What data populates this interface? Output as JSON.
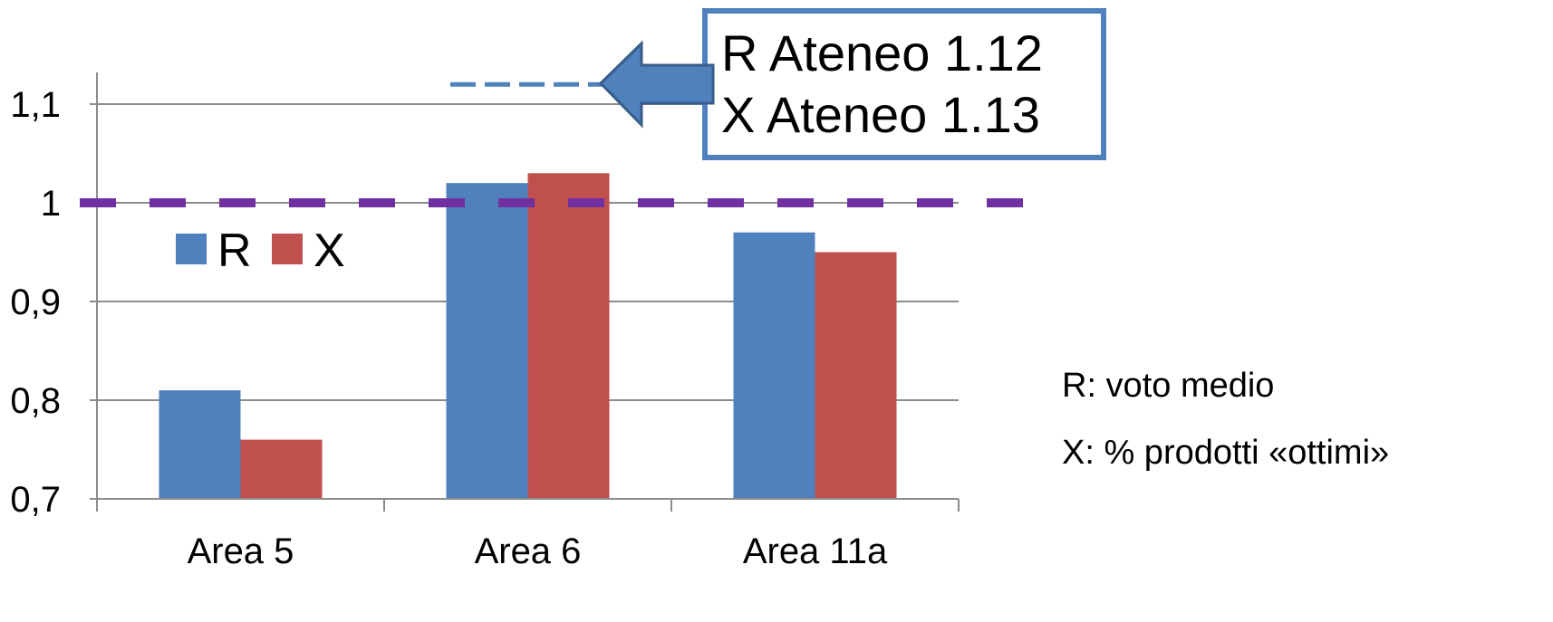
{
  "chart_data": {
    "type": "bar",
    "categories": [
      "Area 5",
      "Area 6",
      "Area 11a"
    ],
    "series": [
      {
        "name": "R",
        "color": "#4F81BD",
        "values": [
          0.81,
          1.02,
          0.97
        ]
      },
      {
        "name": "X",
        "color": "#C0504D",
        "values": [
          0.76,
          1.03,
          0.95
        ]
      }
    ],
    "ylim": [
      0.7,
      1.1
    ],
    "yticks": [
      {
        "value": 0.7,
        "label": "0,7"
      },
      {
        "value": 0.8,
        "label": "0,8"
      },
      {
        "value": 0.9,
        "label": "0,9"
      },
      {
        "value": 1.0,
        "label": "1"
      },
      {
        "value": 1.1,
        "label": "1,1"
      }
    ],
    "grid": true,
    "legend_position": "top-left",
    "reference_lines": [
      {
        "value": 1.0,
        "color": "#7030A0",
        "style": "dashed"
      },
      {
        "value": 1.12,
        "color": "#4F81BD",
        "style": "dashed"
      }
    ],
    "callout": {
      "lines": [
        "R Ateneo 1.12",
        "X Ateneo 1.13"
      ],
      "arrow_color": "#4F81BD",
      "border_color": "#4F81BD"
    },
    "notes": [
      "R: voto medio",
      "X: % prodotti «ottimi»"
    ]
  }
}
